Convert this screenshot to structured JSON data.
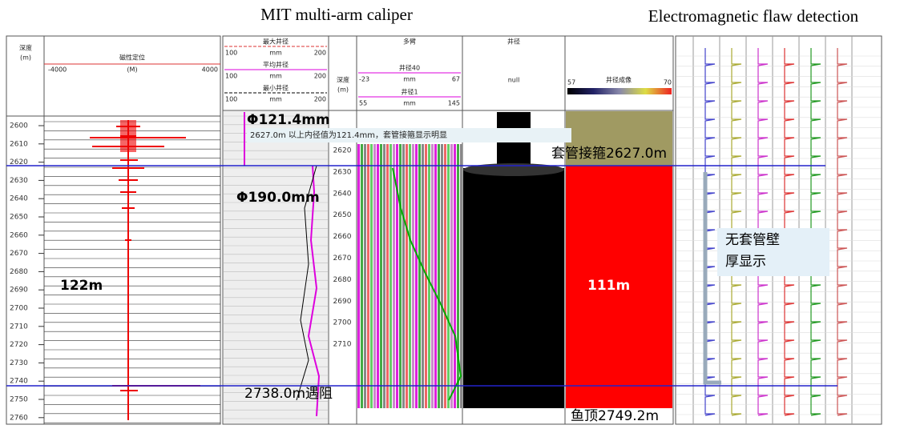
{
  "headings": {
    "caliper": "MIT multi-arm caliper",
    "flaw": "Electromagnetic flaw detection"
  },
  "ccl_track": {
    "depth_header": "深度",
    "depth_unit": "(m)",
    "curve": "磁性定位",
    "min": "-4000",
    "unit": "(M)",
    "max": "4000",
    "depth_labels": [
      "2600",
      "2610",
      "2620",
      "2630",
      "2640",
      "2650",
      "2660",
      "2670",
      "2680",
      "2690",
      "2700",
      "2710",
      "2720",
      "2730",
      "2740",
      "2750",
      "2760"
    ]
  },
  "caliper_track": {
    "curves": [
      {
        "name": "最大井径",
        "min": "100",
        "unit": "mm",
        "max": "200"
      },
      {
        "name": "平均井径",
        "min": "100",
        "unit": "mm",
        "max": "200"
      },
      {
        "name": "最小井径",
        "min": "100",
        "unit": "mm",
        "max": "200"
      }
    ]
  },
  "depth_track": {
    "header": "深度",
    "unit": "(m)",
    "labels": [
      "2620",
      "2630",
      "2640",
      "2650",
      "2660",
      "2670",
      "2680",
      "2690",
      "2700",
      "2710"
    ]
  },
  "arms_track": {
    "header": "多臂",
    "curves": [
      {
        "name": "井径40",
        "min": "-23",
        "unit": "mm",
        "max": "67"
      },
      {
        "name": "井径1",
        "min": "55",
        "unit": "mm",
        "max": "145"
      }
    ]
  },
  "hole_track": {
    "header": "井径",
    "value": "null"
  },
  "image_track": {
    "header": "井径成像",
    "min": "57",
    "max": "70"
  },
  "annotations": {
    "upper_id": "Φ121.4mm",
    "note": "2627.0m 以上内径值为121.4mm，套管接箍显示明显",
    "collar": "套管接箍2627.0m",
    "lower_id": "Φ190.0mm",
    "left_length": "122m",
    "right_length": "111m",
    "no_wall": [
      "无套管壁",
      "厚显示"
    ],
    "obstruction": "2738.0m遇阻",
    "fish_top": "鱼顶2749.2m"
  }
}
